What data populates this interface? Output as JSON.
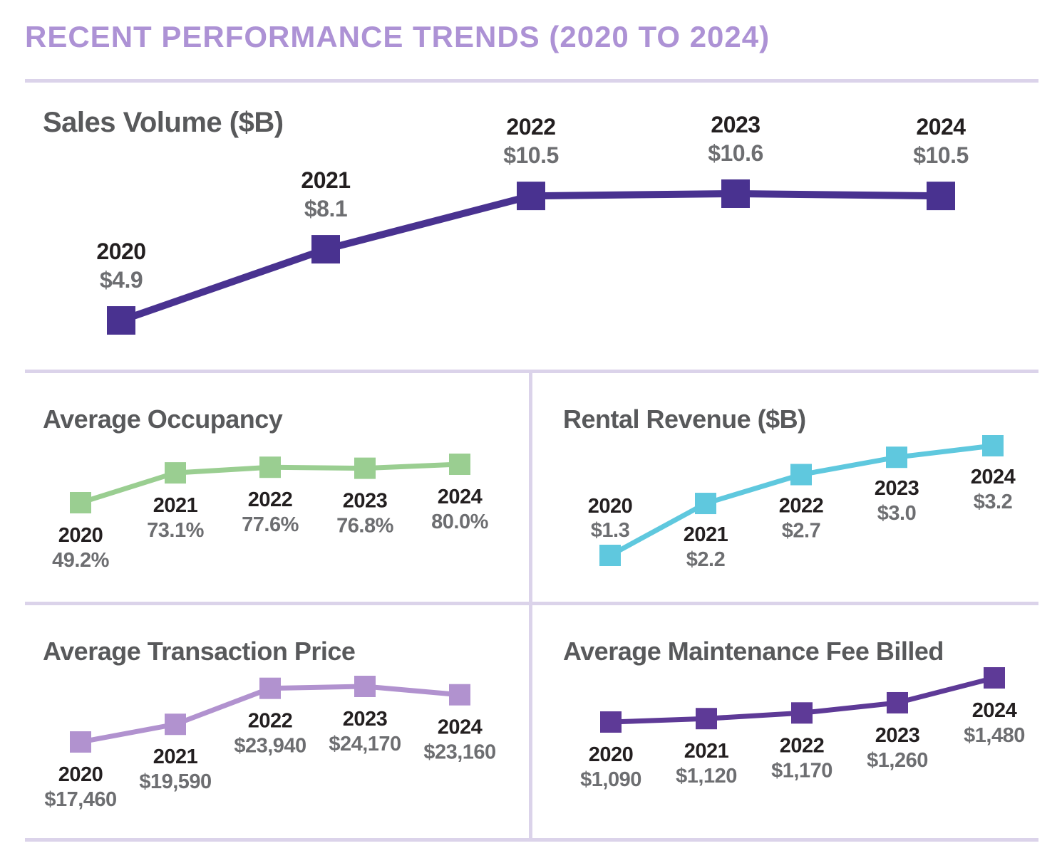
{
  "title": "RECENT PERFORMANCE TRENDS (2020 TO 2024)",
  "colors": {
    "heading_accent": "#ad92d5",
    "divider": "#dbd3ea",
    "chart_title": "#58595b",
    "year_label": "#231f20",
    "value_label": "#6d6e71"
  },
  "chart_data": [
    {
      "id": "sales-volume",
      "type": "line",
      "title": "Sales Volume ($B)",
      "categories": [
        "2020",
        "2021",
        "2022",
        "2023",
        "2024"
      ],
      "values": [
        4.9,
        8.1,
        10.5,
        10.6,
        10.5
      ],
      "value_labels": [
        "$4.9",
        "$8.1",
        "$10.5",
        "$10.6",
        "$10.5"
      ],
      "color": "#493290",
      "xlabel": "",
      "ylabel": "",
      "grid": false,
      "legend": "none",
      "marker": "square"
    },
    {
      "id": "average-occupancy",
      "type": "line",
      "title": "Average Occupancy",
      "categories": [
        "2020",
        "2021",
        "2022",
        "2023",
        "2024"
      ],
      "values": [
        49.2,
        73.1,
        77.6,
        76.8,
        80.0
      ],
      "value_labels": [
        "49.2%",
        "73.1%",
        "77.6%",
        "76.8%",
        "80.0%"
      ],
      "color": "#9ace91",
      "xlabel": "",
      "ylabel": "",
      "grid": false,
      "legend": "none",
      "marker": "square"
    },
    {
      "id": "rental-revenue",
      "type": "line",
      "title": "Rental Revenue ($B)",
      "categories": [
        "2020",
        "2021",
        "2022",
        "2023",
        "2024"
      ],
      "values": [
        1.3,
        2.2,
        2.7,
        3.0,
        3.2
      ],
      "value_labels": [
        "$1.3",
        "$2.2",
        "$2.7",
        "$3.0",
        "$3.2"
      ],
      "color": "#5fc8de",
      "xlabel": "",
      "ylabel": "",
      "grid": false,
      "legend": "none",
      "marker": "square"
    },
    {
      "id": "average-transaction-price",
      "type": "line",
      "title": "Average Transaction Price",
      "categories": [
        "2020",
        "2021",
        "2022",
        "2023",
        "2024"
      ],
      "values": [
        17460,
        19590,
        23940,
        24170,
        23160
      ],
      "value_labels": [
        "$17,460",
        "$19,590",
        "$23,940",
        "$24,170",
        "$23,160"
      ],
      "color": "#b192cf",
      "xlabel": "",
      "ylabel": "",
      "grid": false,
      "legend": "none",
      "marker": "square"
    },
    {
      "id": "average-maintenance-fee",
      "type": "line",
      "title": "Average Maintenance Fee Billed",
      "categories": [
        "2020",
        "2021",
        "2022",
        "2023",
        "2024"
      ],
      "values": [
        1090,
        1120,
        1170,
        1260,
        1480
      ],
      "value_labels": [
        "$1,090",
        "$1,120",
        "$1,170",
        "$1,260",
        "$1,480"
      ],
      "color": "#5e3a97",
      "xlabel": "",
      "ylabel": "",
      "grid": false,
      "legend": "none",
      "marker": "square"
    }
  ]
}
